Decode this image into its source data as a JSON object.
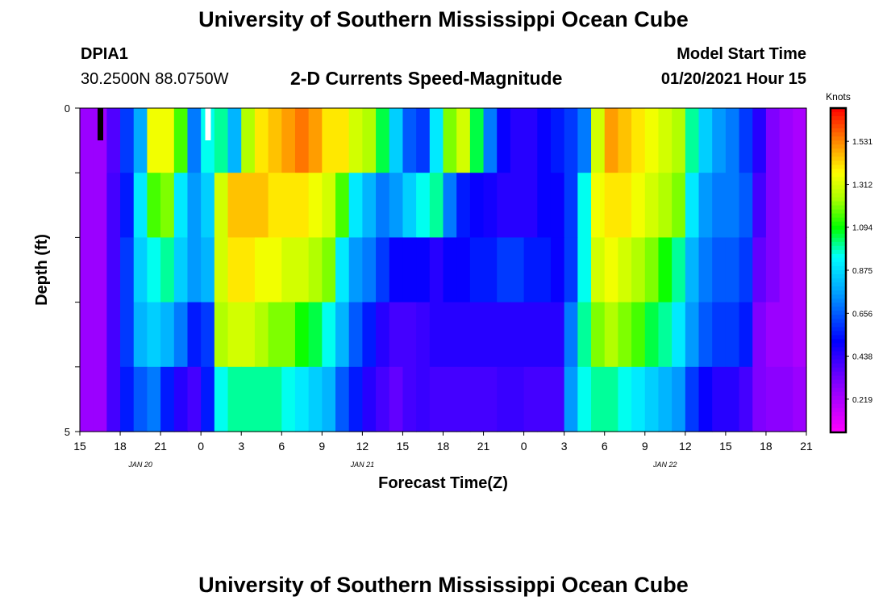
{
  "header": {
    "title": "University of Southern Mississippi Ocean Cube",
    "station_id": "DPIA1",
    "coordinates": "30.2500N 88.0750W",
    "chart_title": "2-D Currents Speed-Magnitude",
    "model_label": "Model Start Time",
    "model_time": "01/20/2021 Hour 15"
  },
  "footer": {
    "title": "University of Southern Mississippi Ocean Cube"
  },
  "chart_data": {
    "type": "heatmap",
    "title": "2-D Currents Speed-Magnitude",
    "xlabel": "Forecast Time(Z)",
    "ylabel": "Depth (ft)",
    "y_ticks": [
      "0",
      "5"
    ],
    "ylim": [
      0,
      5
    ],
    "x_tick_labels": [
      "15",
      "18",
      "21",
      "0",
      "3",
      "6",
      "9",
      "12",
      "15",
      "18",
      "21",
      "0",
      "3",
      "6",
      "9",
      "12",
      "15",
      "18",
      "21"
    ],
    "date_labels": [
      {
        "label": "JAN 20",
        "at_tick": 1.5
      },
      {
        "label": "JAN 21",
        "at_tick": 7
      },
      {
        "label": "JAN 22",
        "at_tick": 14.5
      }
    ],
    "time_steps": 54,
    "depth_layers": 5,
    "colorbar": {
      "unit": "Knots",
      "tick_labels": [
        "1.531",
        "1.312",
        "1.094",
        "0.875",
        "0.656",
        "0.438",
        "0.219"
      ],
      "range": [
        0.05,
        1.7
      ]
    },
    "markers": [
      {
        "type": "current-time",
        "color": "#000000",
        "time_step": 1.5
      },
      {
        "type": "now",
        "color": "#ffffff",
        "time_step": 9.5
      }
    ],
    "layers": [
      [
        0.25,
        0.25,
        0.38,
        0.6,
        0.78,
        1.35,
        1.35,
        1.15,
        0.7,
        0.95,
        1.0,
        0.8,
        1.25,
        1.4,
        1.45,
        1.5,
        1.55,
        1.5,
        1.4,
        1.4,
        1.3,
        1.25,
        1.05,
        0.85,
        0.65,
        0.6,
        0.9,
        1.2,
        1.3,
        1.05,
        0.7,
        0.5,
        0.45,
        0.45,
        0.5,
        0.55,
        0.6,
        0.7,
        1.3,
        1.5,
        1.45,
        1.4,
        1.35,
        1.3,
        1.25,
        1.0,
        0.85,
        0.75,
        0.7,
        0.6,
        0.45,
        0.3,
        0.25,
        0.22
      ],
      [
        0.25,
        0.25,
        0.4,
        0.55,
        0.9,
        1.15,
        1.2,
        0.9,
        0.75,
        0.85,
        1.3,
        1.45,
        1.45,
        1.45,
        1.4,
        1.4,
        1.4,
        1.35,
        1.3,
        1.15,
        0.9,
        0.8,
        0.7,
        0.75,
        0.85,
        0.95,
        1.0,
        0.7,
        0.55,
        0.5,
        0.48,
        0.45,
        0.45,
        0.45,
        0.5,
        0.5,
        0.6,
        0.95,
        1.35,
        1.4,
        1.4,
        1.35,
        1.3,
        1.25,
        1.2,
        0.9,
        0.75,
        0.7,
        0.7,
        0.65,
        0.4,
        0.3,
        0.25,
        0.22
      ],
      [
        0.25,
        0.25,
        0.4,
        0.6,
        0.85,
        0.95,
        1.0,
        0.85,
        0.75,
        0.8,
        1.3,
        1.4,
        1.4,
        1.35,
        1.35,
        1.3,
        1.3,
        1.25,
        1.2,
        0.9,
        0.75,
        0.7,
        0.6,
        0.5,
        0.5,
        0.5,
        0.45,
        0.5,
        0.5,
        0.55,
        0.55,
        0.6,
        0.6,
        0.55,
        0.55,
        0.5,
        0.6,
        0.95,
        1.3,
        1.35,
        1.3,
        1.25,
        1.2,
        1.1,
        1.0,
        0.8,
        0.7,
        0.65,
        0.65,
        0.6,
        0.35,
        0.3,
        0.25,
        0.22
      ],
      [
        0.25,
        0.25,
        0.4,
        0.6,
        0.8,
        0.85,
        0.8,
        0.7,
        0.55,
        0.6,
        1.25,
        1.3,
        1.3,
        1.25,
        1.2,
        1.2,
        1.1,
        1.05,
        0.95,
        0.8,
        0.65,
        0.55,
        0.45,
        0.4,
        0.4,
        0.42,
        0.45,
        0.45,
        0.45,
        0.45,
        0.45,
        0.45,
        0.45,
        0.45,
        0.45,
        0.45,
        0.7,
        1.0,
        1.2,
        1.25,
        1.2,
        1.15,
        1.05,
        1.0,
        0.9,
        0.75,
        0.65,
        0.6,
        0.6,
        0.55,
        0.3,
        0.25,
        0.25,
        0.22
      ],
      [
        0.25,
        0.25,
        0.4,
        0.55,
        0.65,
        0.7,
        0.55,
        0.45,
        0.4,
        0.55,
        0.95,
        1.0,
        1.0,
        1.0,
        1.0,
        0.95,
        0.9,
        0.85,
        0.8,
        0.65,
        0.55,
        0.45,
        0.4,
        0.35,
        0.4,
        0.42,
        0.4,
        0.4,
        0.4,
        0.4,
        0.4,
        0.42,
        0.42,
        0.4,
        0.4,
        0.4,
        0.75,
        0.95,
        1.0,
        1.0,
        0.95,
        0.9,
        0.85,
        0.8,
        0.75,
        0.6,
        0.5,
        0.45,
        0.45,
        0.4,
        0.3,
        0.28,
        0.28,
        0.25
      ]
    ]
  }
}
